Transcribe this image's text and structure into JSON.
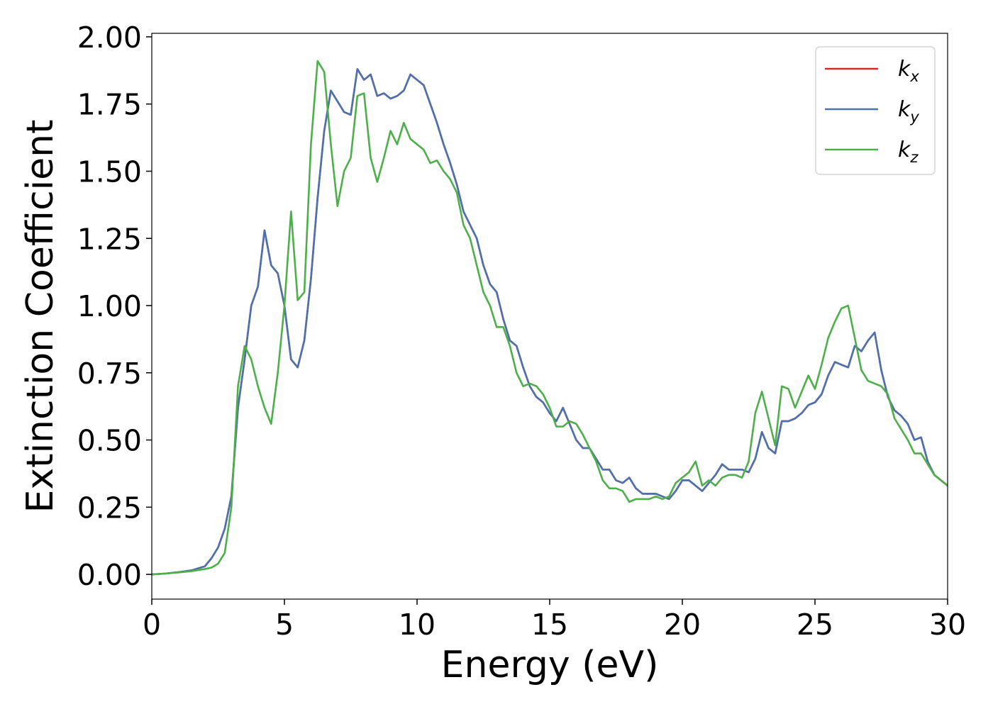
{
  "chart_data": {
    "type": "line",
    "xlabel": "Energy (eV)",
    "ylabel": "Extinction Coefficient",
    "xlim": [
      0,
      30
    ],
    "ylim": [
      -0.092,
      2.013
    ],
    "xticks": [
      0,
      5,
      10,
      15,
      20,
      25,
      30
    ],
    "yticks": [
      {
        "value": 0,
        "label": "0.00"
      },
      {
        "value": 0.25,
        "label": "0.25"
      },
      {
        "value": 0.5,
        "label": "0.50"
      },
      {
        "value": 0.75,
        "label": "0.75"
      },
      {
        "value": 1,
        "label": "1.00"
      },
      {
        "value": 1.25,
        "label": "1.25"
      },
      {
        "value": 1.5,
        "label": "1.50"
      },
      {
        "value": 1.75,
        "label": "1.75"
      },
      {
        "value": 2,
        "label": "2.00"
      }
    ],
    "legend": "upper right",
    "x": [
      0,
      0.5,
      1,
      1.5,
      2,
      2.25,
      2.5,
      2.75,
      3,
      3.25,
      3.5,
      3.75,
      4,
      4.25,
      4.5,
      4.75,
      5,
      5.25,
      5.5,
      5.75,
      6,
      6.25,
      6.5,
      6.75,
      7,
      7.25,
      7.5,
      7.75,
      8,
      8.25,
      8.5,
      8.75,
      9,
      9.25,
      9.5,
      9.75,
      10,
      10.25,
      10.5,
      10.75,
      11,
      11.25,
      11.5,
      11.75,
      12,
      12.25,
      12.5,
      12.75,
      13,
      13.25,
      13.5,
      13.75,
      14,
      14.25,
      14.5,
      14.75,
      15,
      15.25,
      15.5,
      15.75,
      16,
      16.25,
      16.5,
      16.75,
      17,
      17.25,
      17.5,
      17.75,
      18,
      18.25,
      18.5,
      18.75,
      19,
      19.25,
      19.5,
      19.75,
      20,
      20.25,
      20.5,
      20.75,
      21,
      21.25,
      21.5,
      21.75,
      22,
      22.25,
      22.5,
      22.75,
      23,
      23.25,
      23.5,
      23.75,
      24,
      24.25,
      24.5,
      24.75,
      25,
      25.25,
      25.5,
      25.75,
      26,
      26.25,
      26.5,
      26.75,
      27,
      27.25,
      27.5,
      27.75,
      28,
      28.25,
      28.5,
      28.75,
      29,
      29.25,
      29.5,
      29.75,
      30
    ],
    "series": [
      {
        "name": "kx",
        "color": "#d62728",
        "values": [
          0,
          0.003,
          0.008,
          0.015,
          0.03,
          0.06,
          0.1,
          0.17,
          0.29,
          0.62,
          0.8,
          1.0,
          1.07,
          1.28,
          1.15,
          1.12,
          1.0,
          0.8,
          0.77,
          0.87,
          1.1,
          1.4,
          1.65,
          1.8,
          1.76,
          1.72,
          1.71,
          1.88,
          1.84,
          1.86,
          1.78,
          1.79,
          1.77,
          1.78,
          1.8,
          1.86,
          1.84,
          1.82,
          1.75,
          1.68,
          1.6,
          1.53,
          1.45,
          1.35,
          1.3,
          1.25,
          1.15,
          1.08,
          1.05,
          0.95,
          0.87,
          0.85,
          0.77,
          0.7,
          0.66,
          0.64,
          0.6,
          0.57,
          0.62,
          0.56,
          0.5,
          0.47,
          0.47,
          0.43,
          0.39,
          0.39,
          0.35,
          0.34,
          0.36,
          0.32,
          0.3,
          0.3,
          0.3,
          0.29,
          0.28,
          0.31,
          0.35,
          0.35,
          0.33,
          0.31,
          0.34,
          0.37,
          0.41,
          0.39,
          0.39,
          0.39,
          0.38,
          0.43,
          0.53,
          0.47,
          0.45,
          0.57,
          0.57,
          0.58,
          0.6,
          0.63,
          0.64,
          0.67,
          0.74,
          0.79,
          0.78,
          0.77,
          0.85,
          0.83,
          0.87,
          0.9,
          0.76,
          0.66,
          0.61,
          0.59,
          0.56,
          0.5,
          0.51,
          0.42,
          0.37,
          0.35,
          0.33
        ]
      },
      {
        "name": "ky",
        "color": "#4a72b0",
        "values": [
          0,
          0.003,
          0.008,
          0.015,
          0.03,
          0.06,
          0.1,
          0.17,
          0.29,
          0.62,
          0.8,
          1.0,
          1.07,
          1.28,
          1.15,
          1.12,
          1.0,
          0.8,
          0.77,
          0.87,
          1.1,
          1.4,
          1.65,
          1.8,
          1.76,
          1.72,
          1.71,
          1.88,
          1.84,
          1.86,
          1.78,
          1.79,
          1.77,
          1.78,
          1.8,
          1.86,
          1.84,
          1.82,
          1.75,
          1.68,
          1.6,
          1.53,
          1.45,
          1.35,
          1.3,
          1.25,
          1.15,
          1.08,
          1.05,
          0.95,
          0.87,
          0.85,
          0.77,
          0.7,
          0.66,
          0.64,
          0.6,
          0.57,
          0.62,
          0.56,
          0.5,
          0.47,
          0.47,
          0.43,
          0.39,
          0.39,
          0.35,
          0.34,
          0.36,
          0.32,
          0.3,
          0.3,
          0.3,
          0.29,
          0.28,
          0.31,
          0.35,
          0.35,
          0.33,
          0.31,
          0.34,
          0.37,
          0.41,
          0.39,
          0.39,
          0.39,
          0.38,
          0.43,
          0.53,
          0.47,
          0.45,
          0.57,
          0.57,
          0.58,
          0.6,
          0.63,
          0.64,
          0.67,
          0.74,
          0.79,
          0.78,
          0.77,
          0.85,
          0.83,
          0.87,
          0.9,
          0.76,
          0.66,
          0.61,
          0.59,
          0.56,
          0.5,
          0.51,
          0.42,
          0.37,
          0.35,
          0.33
        ]
      },
      {
        "name": "kz",
        "color": "#4daf4a",
        "values": [
          0,
          0.003,
          0.007,
          0.012,
          0.02,
          0.025,
          0.04,
          0.08,
          0.25,
          0.7,
          0.85,
          0.8,
          0.7,
          0.62,
          0.56,
          0.75,
          1.0,
          1.35,
          1.02,
          1.05,
          1.6,
          1.91,
          1.87,
          1.6,
          1.37,
          1.5,
          1.55,
          1.78,
          1.79,
          1.55,
          1.46,
          1.55,
          1.65,
          1.6,
          1.68,
          1.62,
          1.6,
          1.58,
          1.53,
          1.54,
          1.5,
          1.47,
          1.42,
          1.3,
          1.25,
          1.15,
          1.05,
          1.0,
          0.92,
          0.92,
          0.85,
          0.75,
          0.7,
          0.71,
          0.7,
          0.67,
          0.62,
          0.55,
          0.55,
          0.57,
          0.56,
          0.52,
          0.47,
          0.42,
          0.35,
          0.32,
          0.32,
          0.31,
          0.27,
          0.28,
          0.28,
          0.28,
          0.29,
          0.28,
          0.29,
          0.34,
          0.36,
          0.38,
          0.42,
          0.33,
          0.35,
          0.33,
          0.36,
          0.37,
          0.37,
          0.36,
          0.42,
          0.6,
          0.68,
          0.58,
          0.48,
          0.7,
          0.69,
          0.62,
          0.68,
          0.74,
          0.69,
          0.78,
          0.88,
          0.94,
          0.99,
          1.0,
          0.88,
          0.76,
          0.72,
          0.71,
          0.7,
          0.67,
          0.58,
          0.54,
          0.5,
          0.45,
          0.45,
          0.41,
          0.37,
          0.35,
          0.33
        ]
      }
    ]
  }
}
